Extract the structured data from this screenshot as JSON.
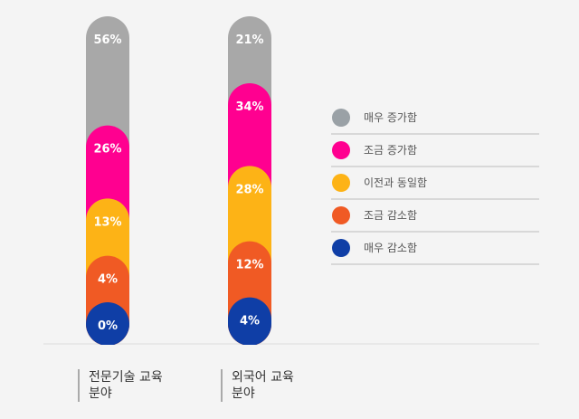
{
  "chart_data": {
    "type": "bar",
    "stacked": true,
    "categories": [
      {
        "line1": "전문기술 교육",
        "line2": "분야"
      },
      {
        "line1": "외국어 교육",
        "line2": "분야"
      }
    ],
    "series": [
      {
        "name": "매우 증가함",
        "color": "#a8a8a8",
        "values": [
          56,
          21
        ]
      },
      {
        "name": "조금 증가함",
        "color": "#ff0090",
        "values": [
          26,
          34
        ]
      },
      {
        "name": "이전과 동일함",
        "color": "#fdb316",
        "values": [
          13,
          28
        ]
      },
      {
        "name": "조금 감소함",
        "color": "#f05a24",
        "values": [
          4,
          12
        ]
      },
      {
        "name": "매우 감소함",
        "color": "#0f3ea6",
        "values": [
          0,
          4
        ]
      }
    ],
    "value_labels": [
      [
        "56%",
        "26%",
        "13%",
        "4%",
        "0%"
      ],
      [
        "21%",
        "34%",
        "28%",
        "12%",
        "4%"
      ]
    ],
    "legend_position": "right",
    "legend_marker_colors": [
      "#9aa1a6",
      "#ff0090",
      "#fdb316",
      "#f05a24",
      "#0f3ea6"
    ]
  }
}
